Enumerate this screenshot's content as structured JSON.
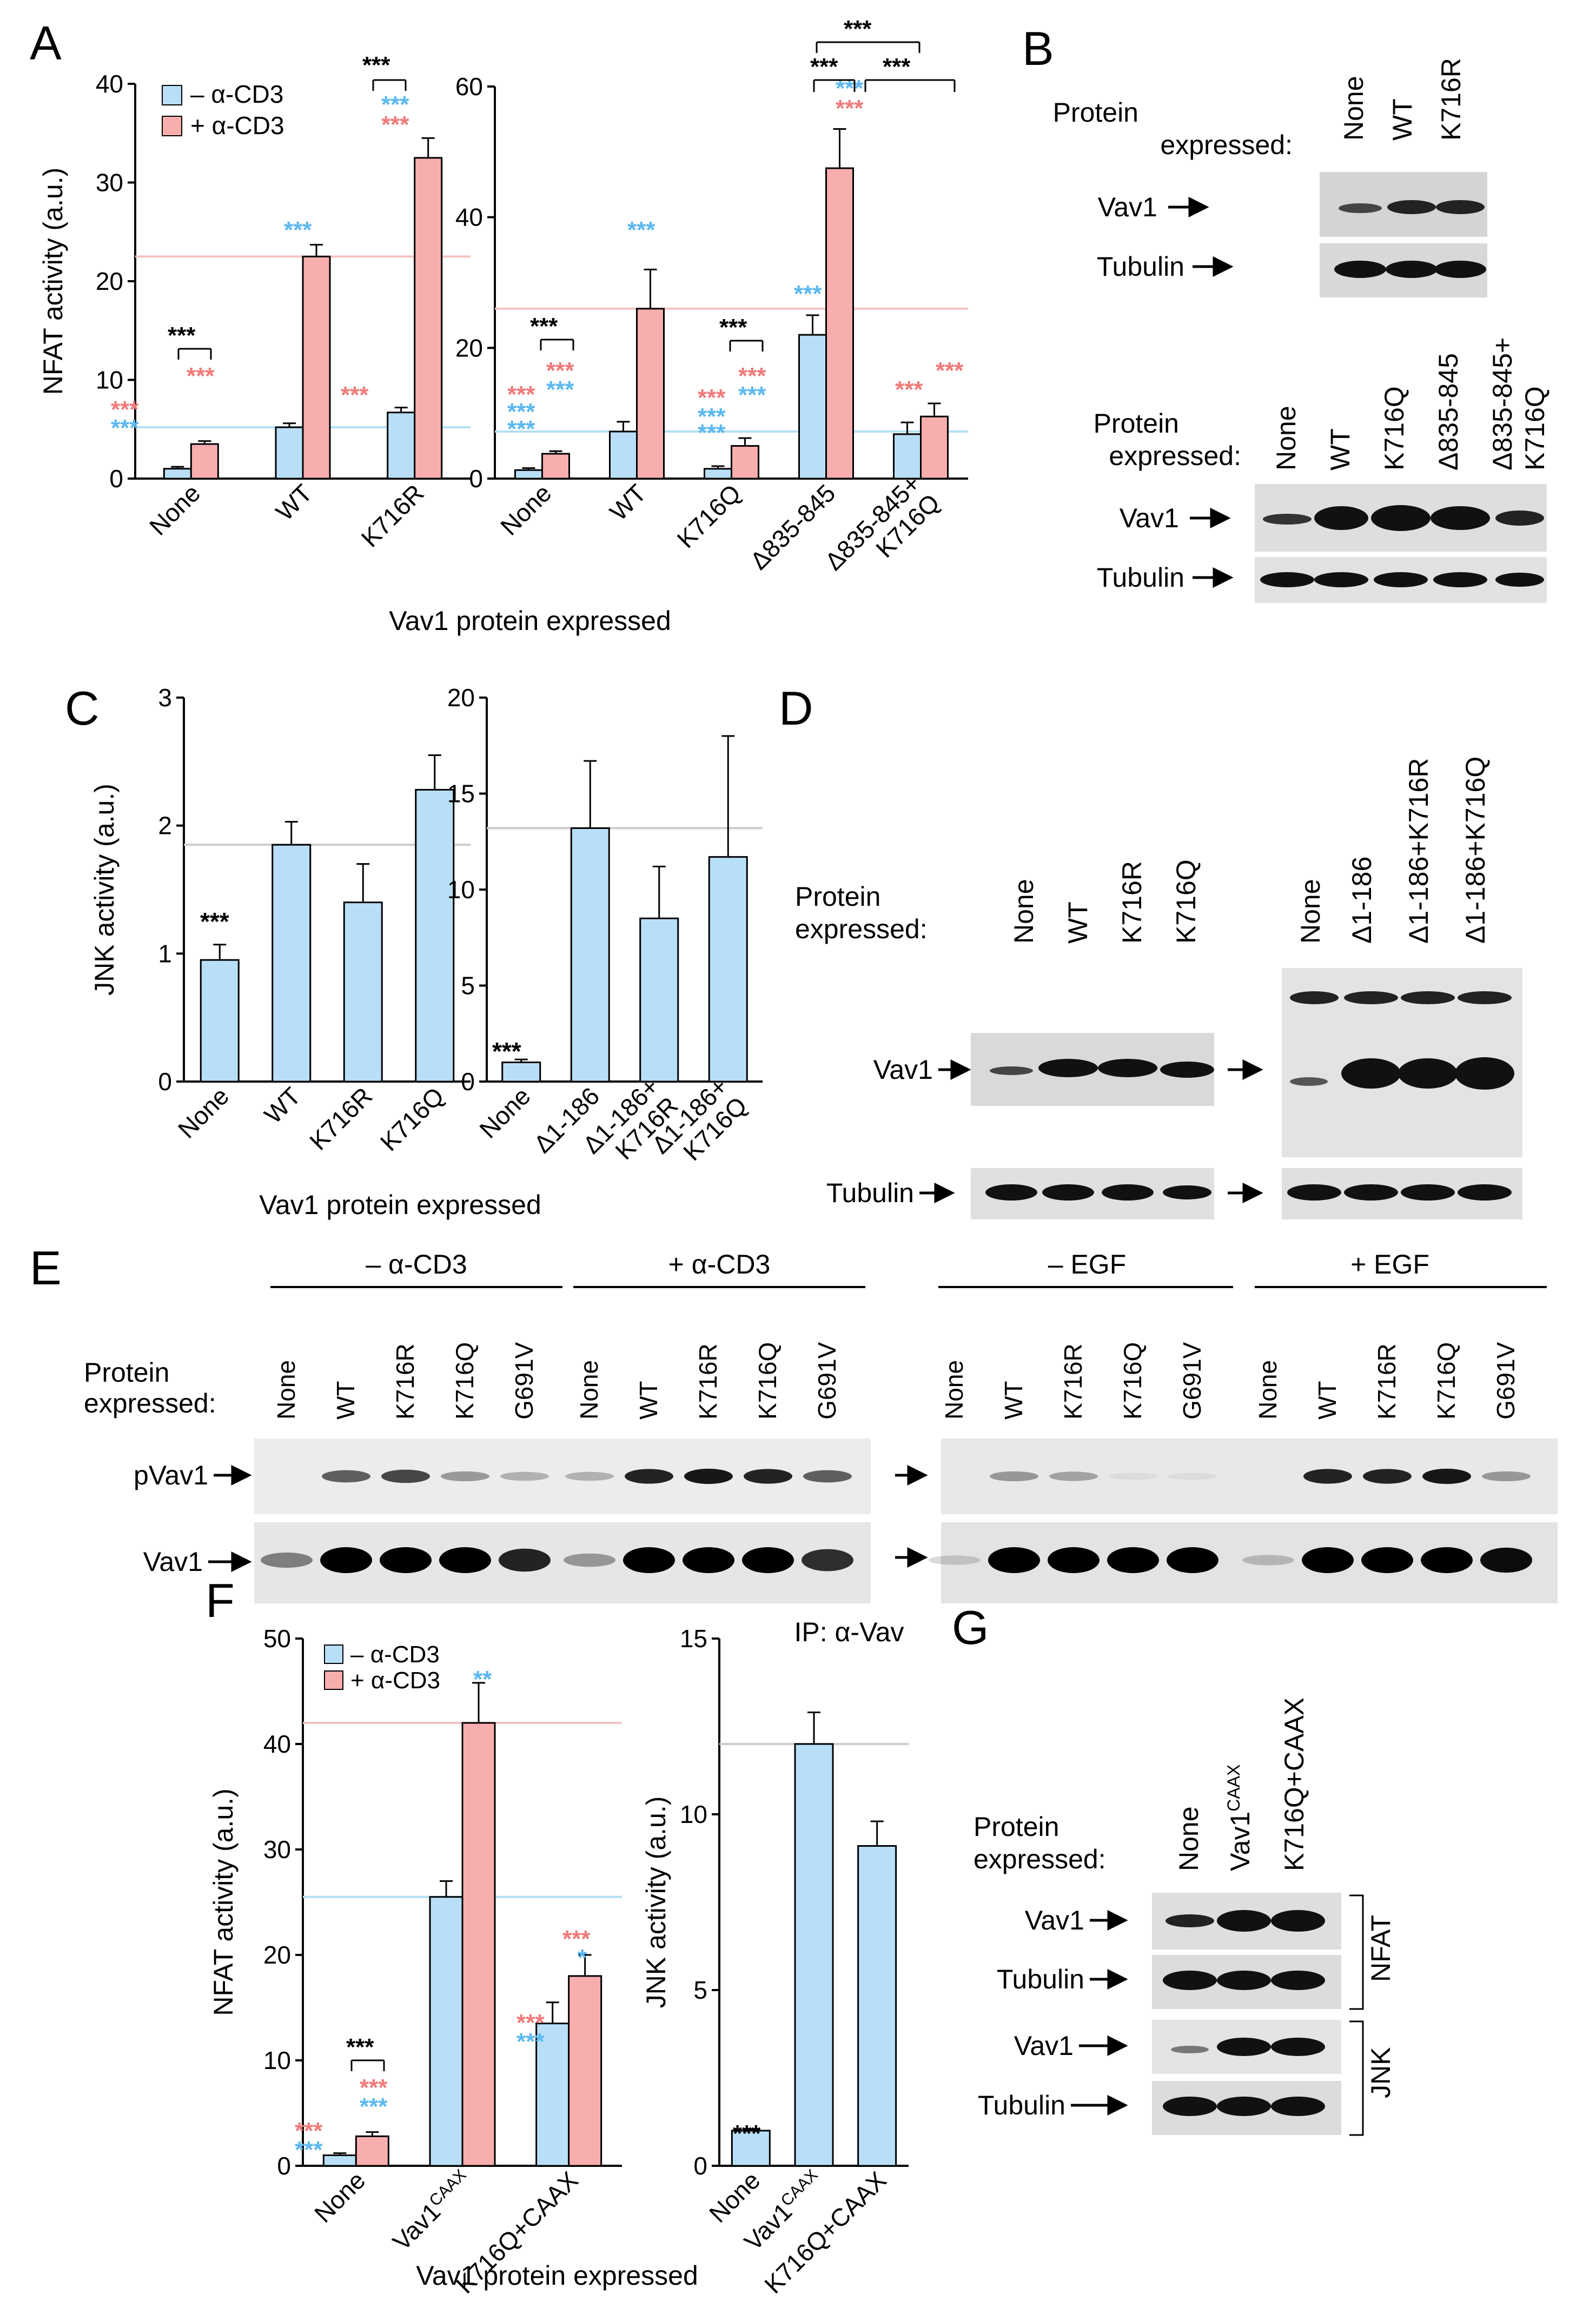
{
  "panel_letters": [
    "A",
    "B",
    "C",
    "D",
    "E",
    "F",
    "G"
  ],
  "colors": {
    "minus": "#b8dff7",
    "plus": "#f9aeae",
    "minus_star": "#5bb8f0",
    "plus_star": "#f07a7a",
    "black": "#000000",
    "ref_red": "#f6c2c2",
    "ref_blue": "#b3e0f5",
    "ref_gray": "#cccccc"
  },
  "legend_nfat": {
    "minus": "– α-CD3",
    "plus": "+ α-CD3"
  },
  "axis_titles": {
    "nfat": "NFAT activity (a.u.)",
    "jnk": "JNK activity (a.u.)",
    "expressed": "Vav1 protein expressed"
  },
  "blot": {
    "protein_expressed": "Protein expressed:",
    "protein": "Protein",
    "expressed": "expressed:",
    "vav1": "Vav1",
    "tubulin": "Tubulin",
    "pvav1": "pVav1",
    "ip": "IP: α-Vav",
    "nfat": "NFAT",
    "jnk": "JNK"
  },
  "stars": {
    "three": "***",
    "two": "**",
    "one": "*"
  },
  "chart_data": [
    {
      "id": "A1",
      "type": "bar",
      "title": "",
      "xlabel": "",
      "ylabel": "NFAT activity (a.u.)",
      "ylim": [
        0,
        40
      ],
      "ticks": [
        0,
        10,
        20,
        30,
        40
      ],
      "categories": [
        "None",
        "WT",
        "K716R"
      ],
      "series": [
        {
          "name": "– α-CD3",
          "values": [
            1,
            5.2,
            6.7
          ],
          "errors": [
            0.2,
            0.4,
            0.5
          ]
        },
        {
          "name": "+ α-CD3",
          "values": [
            3.5,
            22.5,
            32.5
          ],
          "errors": [
            0.3,
            1.2,
            2
          ]
        }
      ],
      "ref_lines": {
        "plus": 22.5,
        "minus": 5.2
      }
    },
    {
      "id": "A2",
      "type": "bar",
      "ylim": [
        0,
        60
      ],
      "ticks": [
        0,
        20,
        40,
        60
      ],
      "categories": [
        "None",
        "WT",
        "K716Q",
        "Δ835-845",
        "Δ835-845+ K716Q"
      ],
      "series": [
        {
          "name": "– α-CD3",
          "values": [
            1.3,
            7.2,
            1.5,
            22,
            6.8
          ],
          "errors": [
            0.3,
            1.5,
            0.4,
            3,
            1.8
          ]
        },
        {
          "name": "+ α-CD3",
          "values": [
            3.8,
            26,
            5,
            47.5,
            9.5
          ],
          "errors": [
            0.4,
            6,
            1.2,
            6,
            2
          ]
        }
      ],
      "ref_lines": {
        "plus": 26,
        "minus": 7.2
      }
    },
    {
      "id": "C1",
      "type": "bar",
      "ylabel": "JNK activity (a.u.)",
      "ylim": [
        0,
        3
      ],
      "ticks": [
        0,
        1,
        2,
        3
      ],
      "categories": [
        "None",
        "WT",
        "K716R",
        "K716Q"
      ],
      "values": [
        0.95,
        1.85,
        1.4,
        2.28
      ],
      "errors": [
        0.12,
        0.18,
        0.3,
        0.27
      ],
      "ref_line": 1.85
    },
    {
      "id": "C2",
      "type": "bar",
      "ylim": [
        0,
        20
      ],
      "ticks": [
        0,
        5,
        10,
        15,
        20
      ],
      "categories": [
        "None",
        "Δ1-186",
        "Δ1-186+ K716R",
        "Δ1-186+ K716Q"
      ],
      "values": [
        1,
        13.2,
        8.5,
        11.7
      ],
      "errors": [
        0.15,
        3.5,
        2.7,
        6.3
      ],
      "ref_line": 13.2
    },
    {
      "id": "F1",
      "type": "bar",
      "ylabel": "NFAT activity (a.u.)",
      "ylim": [
        0,
        50
      ],
      "ticks": [
        0,
        10,
        20,
        30,
        40,
        50
      ],
      "categories": [
        "None",
        "Vav1CAAX",
        "K716Q+CAAX"
      ],
      "series": [
        {
          "name": "– α-CD3",
          "values": [
            1,
            25.5,
            13.5
          ],
          "errors": [
            0.2,
            1.5,
            2
          ]
        },
        {
          "name": "+ α-CD3",
          "values": [
            2.8,
            42,
            18
          ],
          "errors": [
            0.4,
            3.8,
            2
          ]
        }
      ],
      "ref_lines": {
        "plus": 42,
        "minus": 25.5
      }
    },
    {
      "id": "F2",
      "type": "bar",
      "ylabel": "JNK activity (a.u.)",
      "ylim": [
        0,
        15
      ],
      "ticks": [
        0,
        5,
        10,
        15
      ],
      "categories": [
        "None",
        "Vav1CAAX",
        "K716Q+CAAX"
      ],
      "values": [
        1,
        12,
        9.1
      ],
      "errors": [
        0.05,
        0.9,
        0.7
      ],
      "ref_line": 12
    }
  ],
  "blot_B": {
    "lanes1": [
      "None",
      "WT",
      "K716R"
    ],
    "lanes2": [
      "None",
      "WT",
      "K716Q",
      "Δ835-845",
      "Δ835-845+ K716Q"
    ]
  },
  "blot_D": {
    "lanes1": [
      "None",
      "WT",
      "K716R",
      "K716Q"
    ],
    "lanes2": [
      "None",
      "Δ1-186",
      "Δ1-186+K716R",
      "Δ1-186+K716Q"
    ]
  },
  "blot_E": {
    "groups": [
      "– α-CD3",
      "+ α-CD3",
      "– EGF",
      "+ EGF"
    ],
    "lanes": [
      "None",
      "WT",
      "K716R",
      "K716Q",
      "G691V"
    ]
  },
  "blot_G": {
    "lanes": [
      "None",
      "Vav1CAAX",
      "K716Q+CAAX"
    ]
  }
}
